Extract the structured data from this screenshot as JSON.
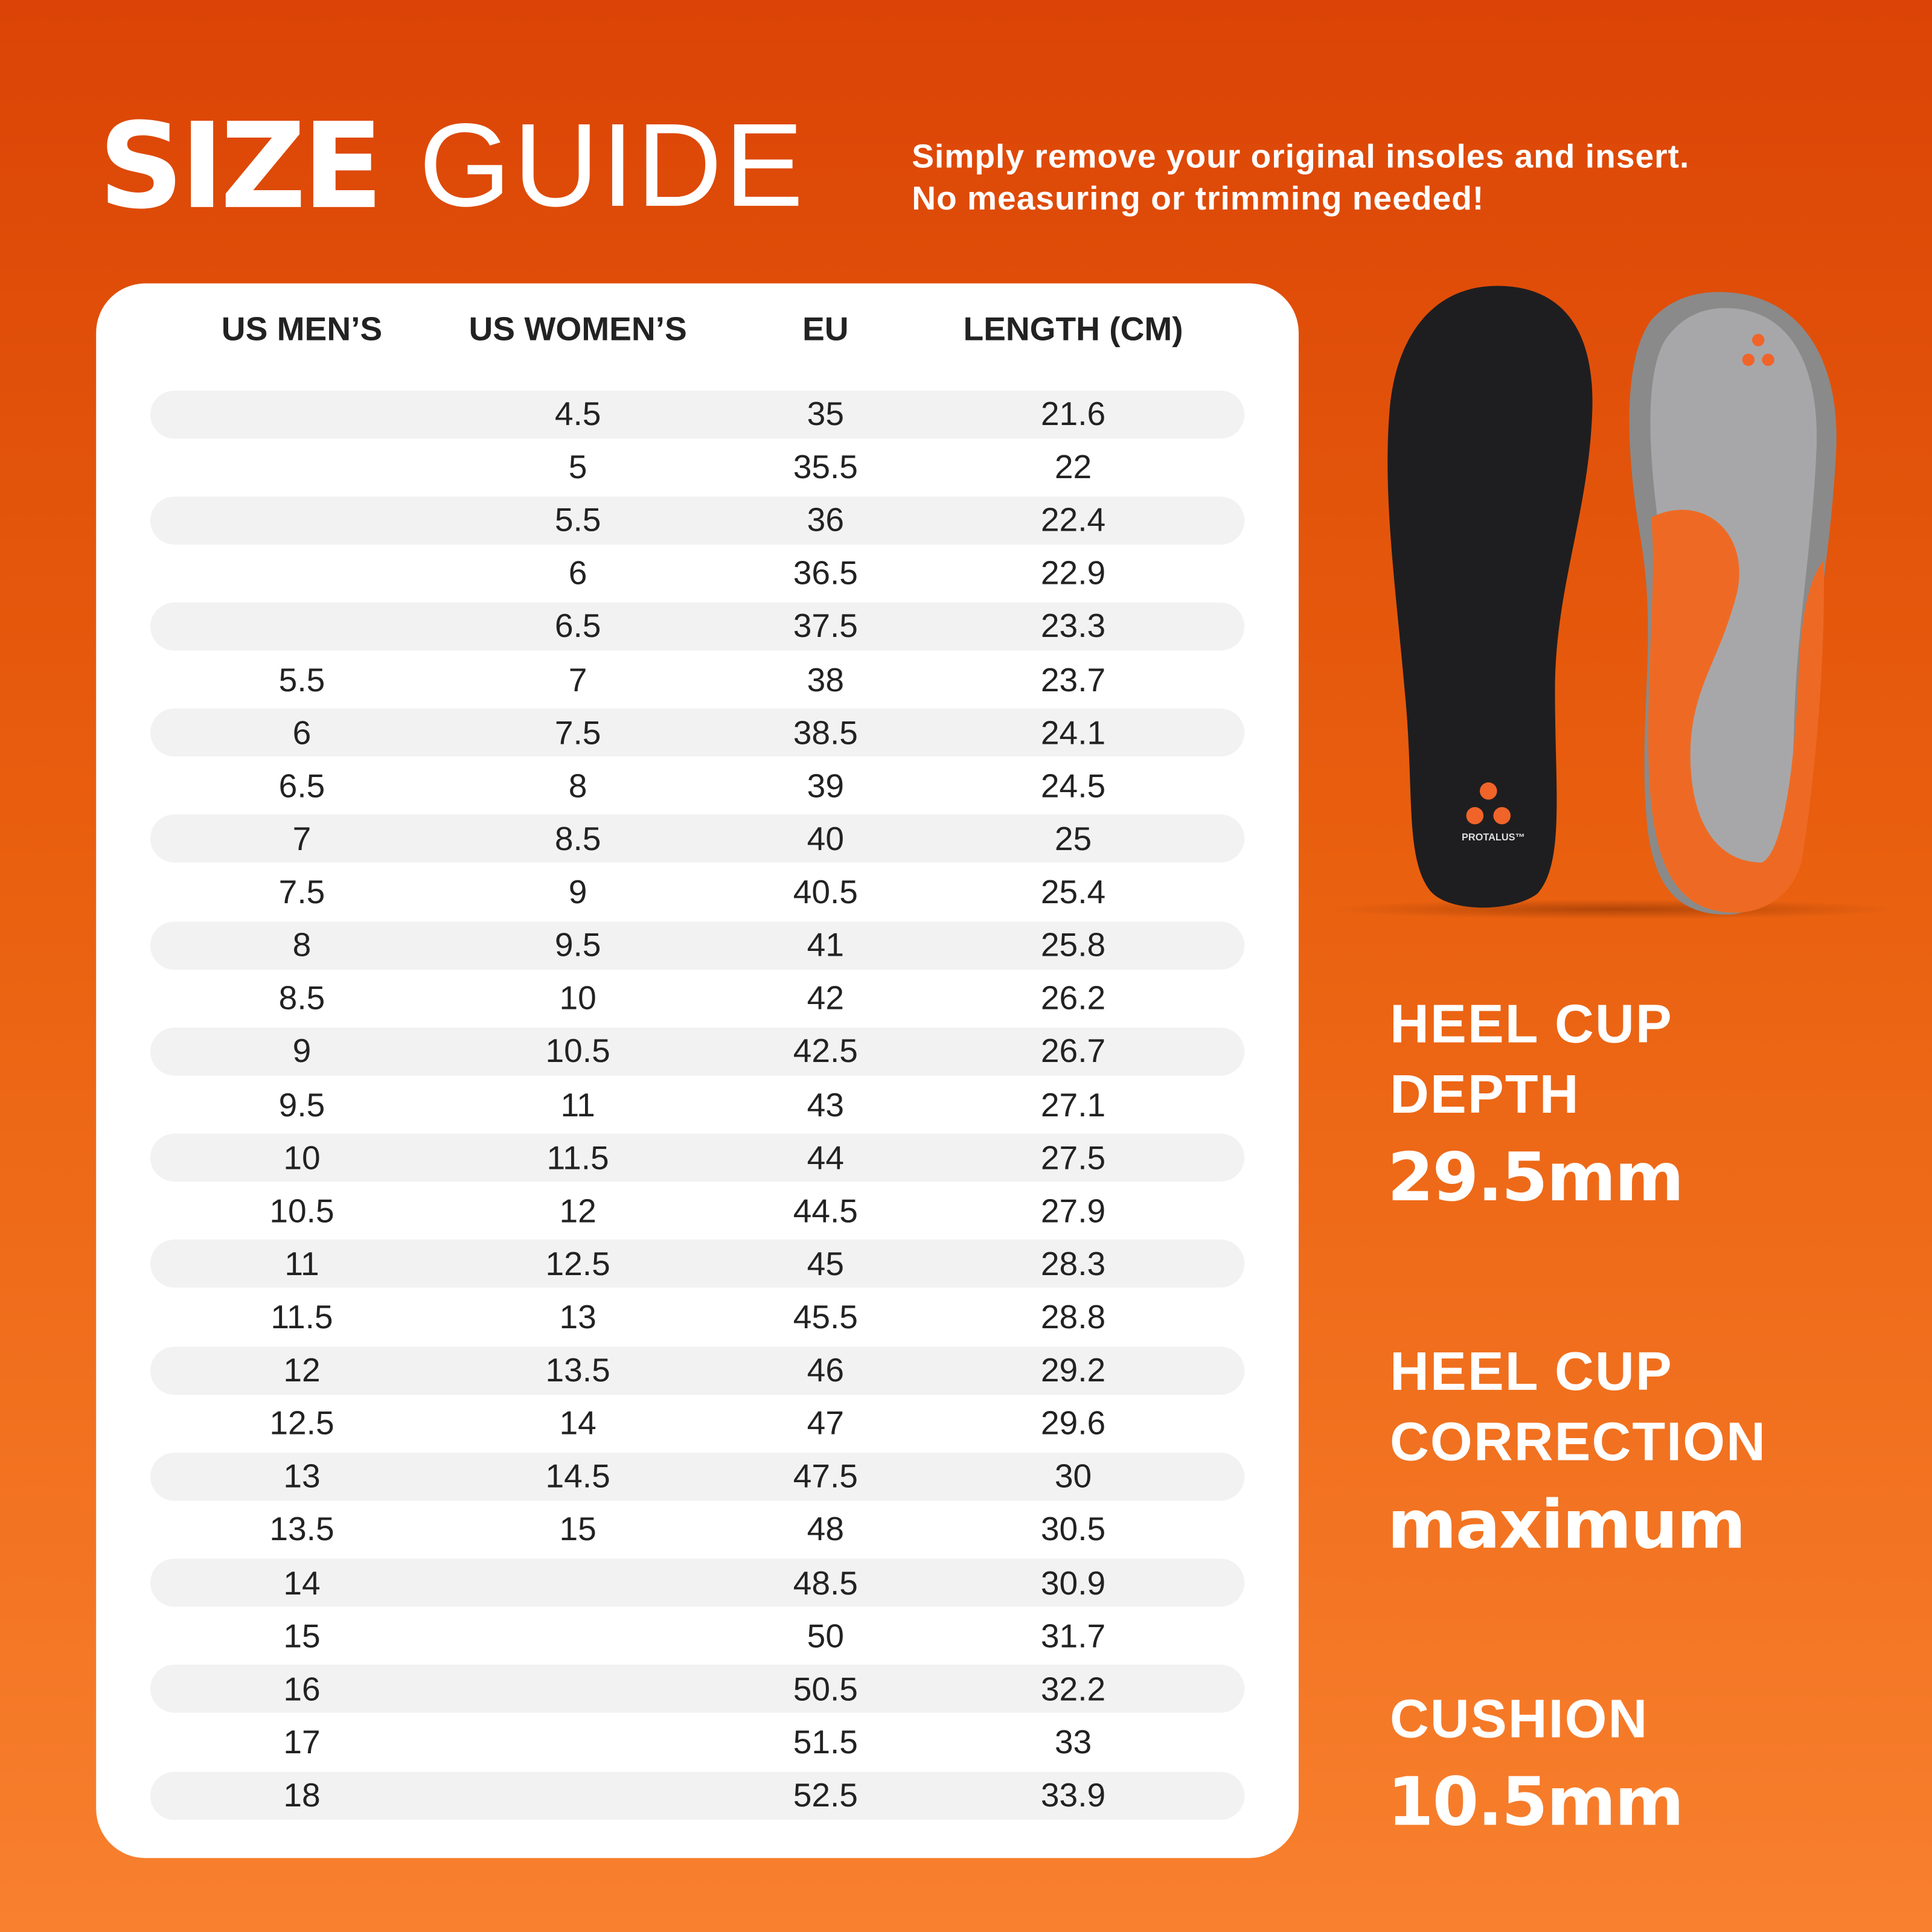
{
  "header": {
    "title_bold": "SIZE",
    "title_light": "GUIDE",
    "subtitle": [
      "Simply remove your original insoles and insert.",
      "No measuring or trimming needed!"
    ]
  },
  "table": {
    "columns": [
      "US MEN’S",
      "US WOMEN’S",
      "EU",
      "LENGTH (CM)"
    ],
    "rows": [
      [
        null,
        "4.5",
        "35",
        "21.6"
      ],
      [
        null,
        "5",
        "35.5",
        "22"
      ],
      [
        null,
        "5.5",
        "36",
        "22.4"
      ],
      [
        null,
        "6",
        "36.5",
        "22.9"
      ],
      [
        null,
        "6.5",
        "37.5",
        "23.3"
      ],
      [
        "5.5",
        "7",
        "38",
        "23.7"
      ],
      [
        "6",
        "7.5",
        "38.5",
        "24.1"
      ],
      [
        "6.5",
        "8",
        "39",
        "24.5"
      ],
      [
        "7",
        "8.5",
        "40",
        "25"
      ],
      [
        "7.5",
        "9",
        "40.5",
        "25.4"
      ],
      [
        "8",
        "9.5",
        "41",
        "25.8"
      ],
      [
        "8.5",
        "10",
        "42",
        "26.2"
      ],
      [
        "9",
        "10.5",
        "42.5",
        "26.7"
      ],
      [
        "9.5",
        "11",
        "43",
        "27.1"
      ],
      [
        "10",
        "11.5",
        "44",
        "27.5"
      ],
      [
        "10.5",
        "12",
        "44.5",
        "27.9"
      ],
      [
        "11",
        "12.5",
        "45",
        "28.3"
      ],
      [
        "11.5",
        "13",
        "45.5",
        "28.8"
      ],
      [
        "12",
        "13.5",
        "46",
        "29.2"
      ],
      [
        "12.5",
        "14",
        "47",
        "29.6"
      ],
      [
        "13",
        "14.5",
        "47.5",
        "30"
      ],
      [
        "13.5",
        "15",
        "48",
        "30.5"
      ],
      [
        "14",
        null,
        "48.5",
        "30.9"
      ],
      [
        "15",
        null,
        "50",
        "31.7"
      ],
      [
        "16",
        null,
        "50.5",
        "32.2"
      ],
      [
        "17",
        null,
        "51.5",
        "33"
      ],
      [
        "18",
        null,
        "52.5",
        "33.9"
      ]
    ]
  },
  "product": {
    "brand": "PROTALUS™"
  },
  "specs": [
    {
      "label": [
        "HEEL CUP",
        "DEPTH"
      ],
      "value": "29.5mm"
    },
    {
      "label": [
        "HEEL CUP",
        "CORRECTION"
      ],
      "value": "maximum"
    },
    {
      "label": [
        "CUSHION"
      ],
      "value": "10.5mm"
    }
  ]
}
